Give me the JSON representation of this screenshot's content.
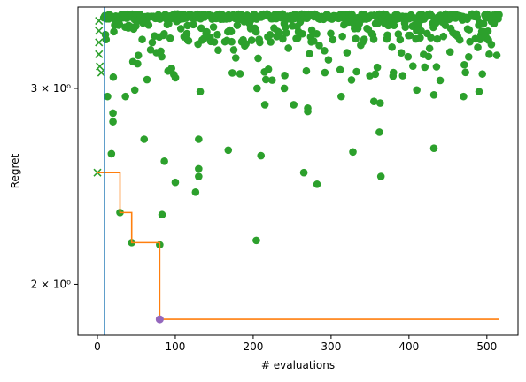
{
  "colors": {
    "scatter": "#2ca02c",
    "incumbent_line": "#ff7f0e",
    "vline": "#1f77b4",
    "best_point": "#9467bd"
  },
  "chart_data": {
    "type": "scatter",
    "title": "",
    "xlabel": "# evaluations",
    "ylabel": "Regret",
    "y_scale": "log",
    "xlim": [
      -25,
      540
    ],
    "ylim": [
      1.8,
      3.55
    ],
    "x_ticks": [
      {
        "value": 0,
        "label": "0"
      },
      {
        "value": 100,
        "label": "100"
      },
      {
        "value": 200,
        "label": "200"
      },
      {
        "value": 300,
        "label": "300"
      },
      {
        "value": 400,
        "label": "400"
      },
      {
        "value": 500,
        "label": "500"
      }
    ],
    "y_ticks": [
      {
        "value": 2,
        "label": "2 × 10⁰"
      },
      {
        "value": 3,
        "label": "3 × 10⁰"
      }
    ],
    "vertical_line_x": 9,
    "initial_design": {
      "marker": "x",
      "points": [
        [
          0,
          2.52
        ],
        [
          2,
          3.45
        ],
        [
          2,
          3.38
        ],
        [
          2,
          3.3
        ],
        [
          2,
          3.22
        ],
        [
          3,
          3.14
        ],
        [
          5,
          3.1
        ]
      ]
    },
    "incumbent": {
      "x": [
        0,
        29,
        29,
        44,
        44,
        80,
        80,
        515
      ],
      "y": [
        2.52,
        2.52,
        2.32,
        2.32,
        2.18,
        2.18,
        1.86,
        1.86
      ]
    },
    "best_point": [
      80,
      1.86
    ],
    "highlight_points": [
      [
        29,
        2.32
      ],
      [
        44,
        2.18
      ],
      [
        80,
        2.17
      ],
      [
        83,
        2.31
      ],
      [
        204,
        2.19
      ],
      [
        126,
        2.42
      ],
      [
        100,
        2.47
      ],
      [
        130,
        2.5
      ],
      [
        86,
        2.58
      ],
      [
        130,
        2.54
      ],
      [
        18,
        2.62
      ],
      [
        60,
        2.7
      ],
      [
        130,
        2.7
      ],
      [
        168,
        2.64
      ],
      [
        210,
        2.61
      ],
      [
        265,
        2.52
      ],
      [
        282,
        2.46
      ],
      [
        328,
        2.63
      ],
      [
        364,
        2.5
      ],
      [
        432,
        2.65
      ],
      [
        13,
        2.95
      ],
      [
        20,
        2.85
      ],
      [
        36,
        2.95
      ],
      [
        48,
        2.99
      ],
      [
        20,
        2.8
      ],
      [
        132,
        2.98
      ],
      [
        205,
        3.0
      ],
      [
        215,
        2.9
      ],
      [
        240,
        3.0
      ],
      [
        252,
        2.9
      ],
      [
        270,
        2.88
      ],
      [
        270,
        2.86
      ],
      [
        292,
        3.1
      ],
      [
        313,
        2.95
      ],
      [
        355,
        2.92
      ],
      [
        362,
        2.74
      ],
      [
        363,
        2.91
      ],
      [
        380,
        3.1
      ],
      [
        392,
        3.08
      ],
      [
        410,
        2.99
      ],
      [
        432,
        2.96
      ],
      [
        440,
        3.05
      ],
      [
        470,
        2.95
      ],
      [
        490,
        2.98
      ],
      [
        503,
        3.22
      ]
    ],
    "seed": 20231
  }
}
